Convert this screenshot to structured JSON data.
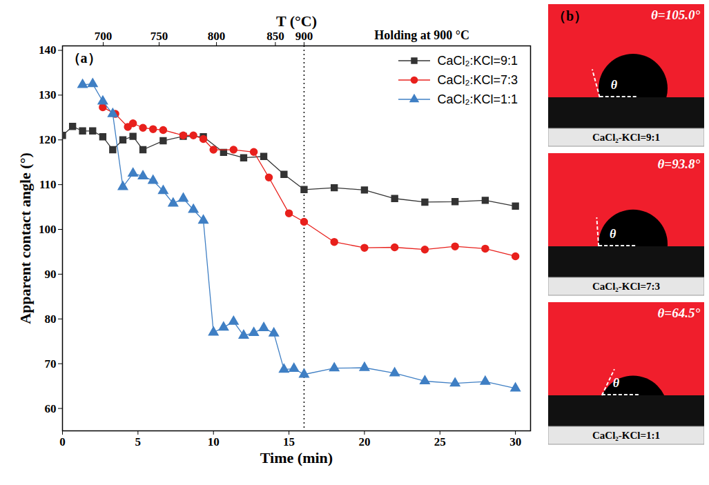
{
  "chart_data": {
    "type": "line",
    "panel_label": "（a）",
    "x_label": "Time (min)",
    "y_label": "Apparent contact angle (°)",
    "xlim": [
      0,
      31
    ],
    "xticks": [
      0,
      5,
      10,
      15,
      20,
      25,
      30
    ],
    "ylim": [
      55,
      141
    ],
    "yticks": [
      60,
      70,
      80,
      90,
      100,
      110,
      120,
      130,
      140
    ],
    "x2_label": "T (°C)",
    "x2ticks": [
      {
        "value": 2.7,
        "label": "700"
      },
      {
        "value": 6.4,
        "label": "750"
      },
      {
        "value": 10.2,
        "label": "800"
      },
      {
        "value": 14.1,
        "label": "850"
      },
      {
        "value": 16,
        "label": "900"
      }
    ],
    "vline": 16,
    "annotations": [
      {
        "text": "Holding at 900 °C",
        "x": 23.8
      }
    ],
    "legend": "upper right",
    "series": [
      {
        "name": "CaCl₂:KCl=9:1",
        "color": "#333333",
        "marker": "square",
        "x": [
          0,
          0.67,
          1.33,
          2,
          2.67,
          3.33,
          4,
          4.67,
          5.33,
          6.67,
          8,
          9.33,
          10.67,
          12,
          13.33,
          14.67,
          16,
          18,
          20,
          22,
          24,
          26,
          28,
          30
        ],
        "values": [
          121,
          123,
          122,
          122,
          120.7,
          117.8,
          120,
          120.8,
          117.8,
          119.8,
          120.8,
          120.7,
          117.2,
          116,
          116.3,
          112.3,
          108.9,
          109.3,
          108.8,
          106.9,
          106.1,
          106.2,
          106.5,
          105.2
        ]
      },
      {
        "name": "CaCl₂:KCl=7:3",
        "color": "#e8201c",
        "marker": "circle",
        "x": [
          2.67,
          3.5,
          4.33,
          4.67,
          5.33,
          6,
          6.67,
          8,
          8.67,
          9.33,
          10,
          11.33,
          12.67,
          13.67,
          15,
          16,
          18,
          20,
          22,
          24,
          26,
          28,
          30
        ],
        "values": [
          127.3,
          125.8,
          122.9,
          123.7,
          122.7,
          122.4,
          122.2,
          121,
          121,
          120.2,
          117.8,
          117.8,
          117.3,
          111.6,
          103.6,
          101.7,
          97.2,
          95.9,
          96,
          95.5,
          96.2,
          95.7,
          94
        ]
      },
      {
        "name": "CaCl₂:KCl=1:1",
        "color": "#3f7fc4",
        "marker": "triangle",
        "x": [
          1.33,
          2,
          2.67,
          3.33,
          4,
          4.67,
          5.33,
          6,
          6.67,
          7.33,
          8,
          8.67,
          9.33,
          10,
          10.67,
          11.33,
          12,
          12.67,
          13.33,
          14,
          14.67,
          15.33,
          16,
          18,
          20,
          22,
          24,
          26,
          28,
          30
        ],
        "values": [
          132.3,
          132.5,
          128.6,
          125.8,
          109.5,
          112.5,
          111.9,
          110.9,
          108.6,
          105.8,
          106.9,
          104.4,
          102,
          77,
          78.1,
          79.4,
          76.3,
          76.9,
          78,
          76.8,
          68.7,
          68.9,
          67.6,
          69,
          69.1,
          67.9,
          66.1,
          65.6,
          66,
          64.5
        ]
      }
    ],
    "inset": {
      "panel_label": "（b）",
      "symbol": "θ",
      "images": [
        {
          "theta": 105.0,
          "label": "θ=105.0°",
          "caption": "CaCl₂-KCl=9:1"
        },
        {
          "theta": 93.8,
          "label": "θ=93.8°",
          "caption": "CaCl₂-KCl=7:3"
        },
        {
          "theta": 64.5,
          "label": "θ=64.5°",
          "caption": "CaCl₂-KCl=1:1"
        }
      ]
    }
  }
}
